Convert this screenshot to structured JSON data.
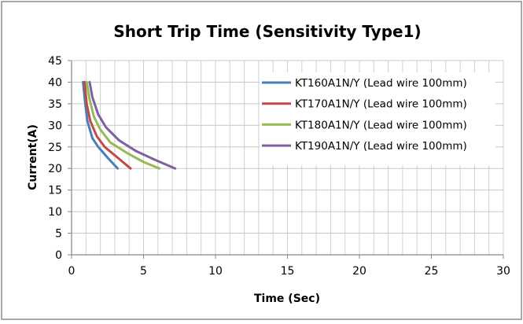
{
  "chart_data": {
    "type": "line",
    "title": "Short Trip Time (Sensitivity Type1)",
    "xlabel": "Time (Sec)",
    "ylabel": "Current(A)",
    "xlim": [
      0,
      30
    ],
    "ylim": [
      0,
      45
    ],
    "x_ticks": [
      0,
      5,
      10,
      15,
      20,
      25,
      30
    ],
    "y_ticks": [
      0,
      5,
      10,
      15,
      20,
      25,
      30,
      35,
      40,
      45
    ],
    "x_minor_step": 1,
    "y_major_step": 5,
    "grid": true,
    "legend_position": "top-right",
    "series": [
      {
        "name": "KT160A1N/Y (Lead wire 100mm)",
        "color": "#4a7ebb",
        "points": [
          [
            0.8,
            40
          ],
          [
            0.95,
            35
          ],
          [
            1.1,
            31
          ],
          [
            1.45,
            27
          ],
          [
            1.85,
            25
          ],
          [
            2.5,
            22.5
          ],
          [
            3.2,
            20
          ]
        ]
      },
      {
        "name": "KT170A1N/Y (Lead wire 100mm)",
        "color": "#be4b48",
        "points": [
          [
            0.9,
            40
          ],
          [
            1.05,
            35
          ],
          [
            1.3,
            31
          ],
          [
            1.75,
            27.5
          ],
          [
            2.3,
            25
          ],
          [
            3.2,
            22.5
          ],
          [
            4.1,
            20
          ]
        ]
      },
      {
        "name": "KT180A1N/Y (Lead wire 100mm)",
        "color": "#98b954",
        "points": [
          [
            1.05,
            40
          ],
          [
            1.25,
            36
          ],
          [
            1.55,
            32
          ],
          [
            2.0,
            29
          ],
          [
            2.7,
            26
          ],
          [
            3.9,
            23.5
          ],
          [
            5.0,
            21.5
          ],
          [
            6.1,
            20
          ]
        ]
      },
      {
        "name": "KT190A1N/Y (Lead wire 100mm)",
        "color": "#7d60a0",
        "points": [
          [
            1.25,
            40
          ],
          [
            1.45,
            36.5
          ],
          [
            1.85,
            32.5
          ],
          [
            2.4,
            29.5
          ],
          [
            3.3,
            26.5
          ],
          [
            4.5,
            24
          ],
          [
            5.8,
            22
          ],
          [
            7.2,
            20
          ]
        ]
      }
    ]
  }
}
